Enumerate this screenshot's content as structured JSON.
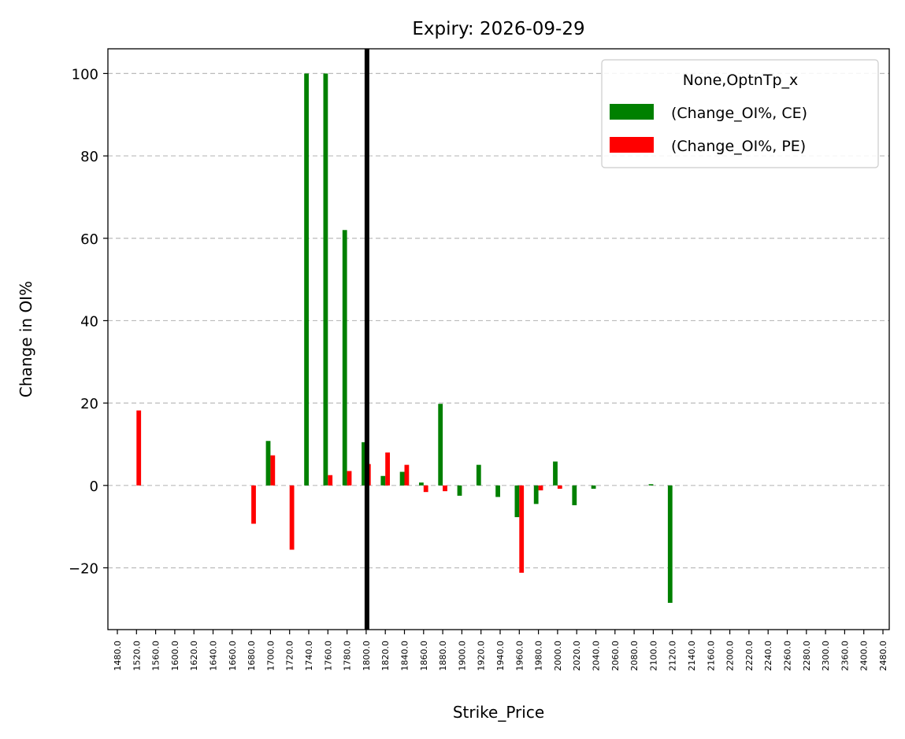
{
  "chart_data": {
    "type": "bar",
    "title": "Expiry: 2026-09-29",
    "xlabel": "Strike_Price",
    "ylabel": "Change in OI%",
    "ylim": [
      -35,
      106
    ],
    "yticks": [
      -20,
      0,
      20,
      40,
      60,
      80,
      100
    ],
    "ytick_labels": [
      "−20",
      "0",
      "20",
      "40",
      "60",
      "80",
      "100"
    ],
    "grid": "horizontal dashed",
    "legend_placement": "top-right",
    "legend_title": "None,OptnTp_x",
    "categories": [
      "1480.0",
      "1520.0",
      "1560.0",
      "1600.0",
      "1620.0",
      "1640.0",
      "1660.0",
      "1680.0",
      "1700.0",
      "1720.0",
      "1740.0",
      "1760.0",
      "1780.0",
      "1800.0",
      "1820.0",
      "1840.0",
      "1860.0",
      "1880.0",
      "1900.0",
      "1920.0",
      "1940.0",
      "1960.0",
      "1980.0",
      "2000.0",
      "2020.0",
      "2040.0",
      "2060.0",
      "2080.0",
      "2100.0",
      "2120.0",
      "2140.0",
      "2160.0",
      "2200.0",
      "2220.0",
      "2240.0",
      "2260.0",
      "2280.0",
      "2300.0",
      "2360.0",
      "2400.0",
      "2480.0"
    ],
    "reference_line": {
      "category": "1800.0",
      "color": "#000000"
    },
    "series": [
      {
        "name": "(Change_OI%, CE)",
        "color": "#008000",
        "values": [
          0,
          0,
          0,
          0,
          0,
          0,
          0,
          0,
          10.8,
          0,
          100,
          100,
          62,
          10.5,
          2.3,
          3.3,
          0.7,
          19.8,
          -2.5,
          5.0,
          -2.8,
          -7.7,
          -4.5,
          5.8,
          -4.8,
          -0.8,
          0,
          0,
          0.3,
          -28.5,
          0,
          0,
          0,
          0,
          0,
          0,
          0,
          0,
          0,
          0,
          0
        ]
      },
      {
        "name": "(Change_OI%, PE)",
        "color": "#ff0000",
        "values": [
          0,
          18.2,
          0,
          0,
          0,
          0,
          0,
          -9.3,
          7.3,
          -15.6,
          0,
          2.5,
          3.5,
          5.2,
          8.0,
          5.0,
          -1.6,
          -1.4,
          0,
          0,
          0,
          -21.2,
          -1.2,
          -0.8,
          0,
          0,
          0,
          0,
          0,
          0,
          0,
          0,
          0,
          0,
          0,
          0,
          0,
          0,
          0,
          0,
          0
        ]
      }
    ]
  }
}
